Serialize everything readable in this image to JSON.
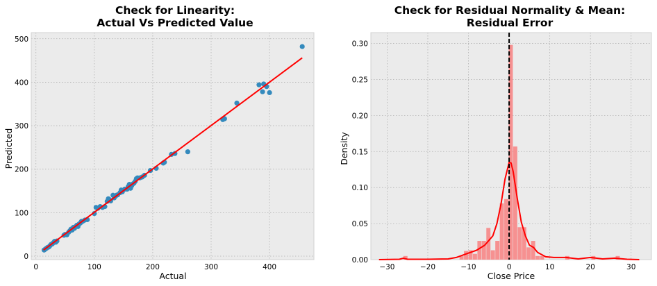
{
  "chart_data": [
    {
      "type": "scatter",
      "title": "Check for Linearity:\nActual Vs Predicted Value",
      "title_lines": [
        "Check for Linearity:",
        "Actual Vs Predicted Value"
      ],
      "xlabel": "Actual",
      "ylabel": "Predicted",
      "xlim": [
        -8,
        476
      ],
      "ylim": [
        -8,
        514
      ],
      "xticks": [
        0,
        100,
        200,
        300,
        400
      ],
      "yticks": [
        0,
        100,
        200,
        300,
        400,
        500
      ],
      "grid": true,
      "point_color": "#348abd",
      "line_color": "#ff0000",
      "fit_line": {
        "x": [
          13,
          456
        ],
        "y": [
          14,
          456
        ]
      },
      "points": [
        [
          14,
          14
        ],
        [
          16,
          16
        ],
        [
          18,
          18
        ],
        [
          20,
          20
        ],
        [
          22,
          21
        ],
        [
          24,
          24
        ],
        [
          26,
          27
        ],
        [
          28,
          28
        ],
        [
          30,
          31
        ],
        [
          32,
          34
        ],
        [
          34,
          32
        ],
        [
          36,
          35
        ],
        [
          48,
          48
        ],
        [
          50,
          50
        ],
        [
          53,
          49
        ],
        [
          56,
          55
        ],
        [
          58,
          58
        ],
        [
          60,
          62
        ],
        [
          62,
          60
        ],
        [
          64,
          66
        ],
        [
          66,
          64
        ],
        [
          68,
          68
        ],
        [
          70,
          71
        ],
        [
          72,
          68
        ],
        [
          74,
          74
        ],
        [
          76,
          76
        ],
        [
          78,
          80
        ],
        [
          80,
          80
        ],
        [
          84,
          83
        ],
        [
          88,
          84
        ],
        [
          100,
          98
        ],
        [
          103,
          112
        ],
        [
          106,
          110
        ],
        [
          110,
          114
        ],
        [
          114,
          112
        ],
        [
          118,
          114
        ],
        [
          122,
          126
        ],
        [
          124,
          132
        ],
        [
          126,
          130
        ],
        [
          128,
          127
        ],
        [
          132,
          140
        ],
        [
          134,
          134
        ],
        [
          136,
          138
        ],
        [
          138,
          140
        ],
        [
          140,
          141
        ],
        [
          144,
          146
        ],
        [
          146,
          152
        ],
        [
          148,
          148
        ],
        [
          152,
          154
        ],
        [
          156,
          154
        ],
        [
          158,
          160
        ],
        [
          160,
          165
        ],
        [
          162,
          156
        ],
        [
          164,
          162
        ],
        [
          166,
          166
        ],
        [
          168,
          168
        ],
        [
          170,
          172
        ],
        [
          172,
          178
        ],
        [
          174,
          180
        ],
        [
          178,
          180
        ],
        [
          182,
          182
        ],
        [
          186,
          186
        ],
        [
          196,
          197
        ],
        [
          206,
          202
        ],
        [
          218,
          214
        ],
        [
          220,
          216
        ],
        [
          232,
          234
        ],
        [
          238,
          236
        ],
        [
          260,
          240
        ],
        [
          320,
          314
        ],
        [
          323,
          316
        ],
        [
          344,
          352
        ],
        [
          382,
          394
        ],
        [
          388,
          378
        ],
        [
          390,
          396
        ],
        [
          395,
          390
        ],
        [
          400,
          376
        ],
        [
          456,
          482
        ]
      ]
    },
    {
      "type": "bar",
      "title": "Check for Residual Normality & Mean:\nResidual Error",
      "title_lines": [
        "Check for Residual Normality & Mean:",
        "Residual Error"
      ],
      "xlabel": "Close Price",
      "ylabel": "Density",
      "xlim": [
        -34,
        35
      ],
      "ylim": [
        0,
        0.315
      ],
      "xticks": [
        -30,
        -20,
        -10,
        0,
        10,
        20,
        30
      ],
      "yticks": [
        0.0,
        0.05,
        0.1,
        0.15,
        0.2,
        0.25,
        0.3
      ],
      "ytick_labels": [
        "0.00",
        "0.05",
        "0.10",
        "0.15",
        "0.20",
        "0.25",
        "0.30"
      ],
      "grid": true,
      "bar_color": "#f78c8c",
      "kde_color": "#ff0000",
      "mean_line": {
        "x": 0,
        "color": "#000000",
        "style": "dashed"
      },
      "bin_width": 1.08,
      "bins": [
        [
          -26.0,
          0.005
        ],
        [
          -12.2,
          0.005
        ],
        [
          -11.1,
          0.012
        ],
        [
          -10.0,
          0.013
        ],
        [
          -8.9,
          0.008
        ],
        [
          -7.8,
          0.026
        ],
        [
          -6.7,
          0.026
        ],
        [
          -5.6,
          0.044
        ],
        [
          -4.5,
          0.013
        ],
        [
          -3.4,
          0.026
        ],
        [
          -2.3,
          0.078
        ],
        [
          -1.2,
          0.084
        ],
        [
          -0.1,
          0.298
        ],
        [
          1.0,
          0.157
        ],
        [
          2.1,
          0.045
        ],
        [
          3.2,
          0.045
        ],
        [
          4.3,
          0.017
        ],
        [
          5.4,
          0.026
        ],
        [
          6.5,
          0.005
        ],
        [
          7.6,
          0.005
        ],
        [
          13.8,
          0.005
        ],
        [
          20.2,
          0.005
        ],
        [
          26.2,
          0.005
        ]
      ],
      "kde": [
        [
          -32,
          0.0
        ],
        [
          -27,
          0.0005
        ],
        [
          -26,
          0.002
        ],
        [
          -25,
          0.0005
        ],
        [
          -20,
          0.0005
        ],
        [
          -15,
          0.001
        ],
        [
          -13,
          0.003
        ],
        [
          -11,
          0.007
        ],
        [
          -9,
          0.011
        ],
        [
          -8,
          0.013
        ],
        [
          -6,
          0.02
        ],
        [
          -4,
          0.033
        ],
        [
          -3,
          0.05
        ],
        [
          -2,
          0.077
        ],
        [
          -1,
          0.112
        ],
        [
          0,
          0.135
        ],
        [
          0.5,
          0.134
        ],
        [
          1,
          0.122
        ],
        [
          2,
          0.085
        ],
        [
          3,
          0.052
        ],
        [
          4,
          0.033
        ],
        [
          5,
          0.02
        ],
        [
          6,
          0.017
        ],
        [
          7,
          0.01
        ],
        [
          9,
          0.004
        ],
        [
          11,
          0.003
        ],
        [
          14,
          0.003
        ],
        [
          17,
          0.001
        ],
        [
          20,
          0.003
        ],
        [
          23,
          0.001
        ],
        [
          26,
          0.002
        ],
        [
          29,
          0.0005
        ],
        [
          32,
          0.0
        ]
      ]
    }
  ]
}
